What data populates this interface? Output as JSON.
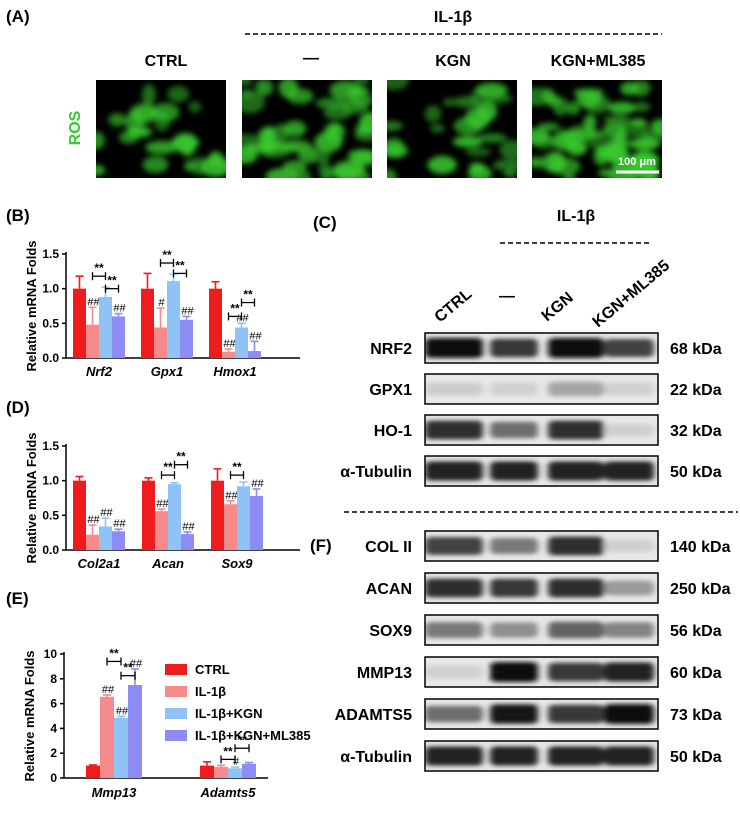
{
  "panels": {
    "A": {
      "letter": "(A)",
      "group_label": "IL-1β",
      "ylabel": "ROS",
      "columns": [
        "CTRL",
        "—",
        "KGN",
        "KGN+ML385"
      ],
      "scale_bar": "100 μm",
      "green_color": "#39c92e"
    },
    "B": {
      "letter": "(B)"
    },
    "C": {
      "letter": "(C)",
      "group_label": "IL-1β",
      "lanes": [
        "CTRL",
        "—",
        "KGN",
        "KGN+ML385"
      ],
      "blots": [
        {
          "protein": "NRF2",
          "kda": "68 kDa",
          "intensity": [
            1.0,
            0.8,
            1.0,
            0.75
          ]
        },
        {
          "protein": "GPX1",
          "kda": "22 kDa",
          "intensity": [
            0.12,
            0.1,
            0.3,
            0.1
          ]
        },
        {
          "protein": "HO-1",
          "kda": "32 kDa",
          "intensity": [
            0.85,
            0.55,
            0.85,
            0.1
          ]
        },
        {
          "protein": "α-Tubulin",
          "kda": "50 kDa",
          "intensity": [
            0.9,
            0.9,
            0.9,
            0.9
          ]
        }
      ]
    },
    "D": {
      "letter": "(D)"
    },
    "E": {
      "letter": "(E)"
    },
    "F": {
      "letter": "(F)",
      "blots": [
        {
          "protein": "COL II",
          "kda": "140 kDa",
          "intensity": [
            0.75,
            0.5,
            0.85,
            0.1
          ]
        },
        {
          "protein": "ACAN",
          "kda": "250 kDa",
          "intensity": [
            0.85,
            0.8,
            0.85,
            0.35
          ]
        },
        {
          "protein": "SOX9",
          "kda": "56 kDa",
          "intensity": [
            0.5,
            0.4,
            0.6,
            0.45
          ]
        },
        {
          "protein": "MMP13",
          "kda": "60 kDa",
          "intensity": [
            0.1,
            1.0,
            0.8,
            0.9
          ]
        },
        {
          "protein": "ADAMTS5",
          "kda": "73 kDa",
          "intensity": [
            0.55,
            0.95,
            0.8,
            1.0
          ]
        },
        {
          "protein": "α-Tubulin",
          "kda": "50 kDa",
          "intensity": [
            0.9,
            0.9,
            0.9,
            0.9
          ]
        }
      ]
    }
  },
  "colors": {
    "CTRL": "#ee1c1c",
    "IL-1β": "#f48a8a",
    "IL-1β+KGN": "#8fc3f5",
    "IL-1β+KGN+ML385": "#8c8cf4"
  },
  "chart_data": [
    {
      "id": "B",
      "type": "bar",
      "ylabel": "Relative mRNA Folds",
      "ylim": [
        0,
        1.5
      ],
      "yticks": [
        "0.0",
        "0.5",
        "1.0",
        "1.5"
      ],
      "categories": [
        "Nrf2",
        "Gpx1",
        "Hmox1"
      ],
      "series": [
        {
          "name": "CTRL",
          "values": [
            1.0,
            1.0,
            1.0
          ],
          "errors": [
            0.18,
            0.22,
            0.1
          ]
        },
        {
          "name": "IL-1β",
          "values": [
            0.48,
            0.44,
            0.09
          ],
          "errors": [
            0.25,
            0.28,
            0.04
          ]
        },
        {
          "name": "IL-1β+KGN",
          "values": [
            0.88,
            1.11,
            0.44
          ],
          "errors": [
            0.14,
            0.1,
            0.06
          ]
        },
        {
          "name": "IL-1β+KGN+ML385",
          "values": [
            0.6,
            0.55,
            0.1
          ],
          "errors": [
            0.04,
            0.05,
            0.14
          ]
        }
      ],
      "marks": [
        [
          "",
          "##",
          "",
          "##"
        ],
        [
          "",
          "#",
          "",
          "##"
        ],
        [
          "",
          "##",
          "##",
          "##"
        ]
      ],
      "brackets": [
        {
          "cat": 0,
          "from": 1,
          "to": 2,
          "y": 1.18,
          "label": "**"
        },
        {
          "cat": 0,
          "from": 2,
          "to": 3,
          "y": 1.0,
          "label": "**"
        },
        {
          "cat": 1,
          "from": 1,
          "to": 2,
          "y": 1.37,
          "label": "**"
        },
        {
          "cat": 1,
          "from": 2,
          "to": 3,
          "y": 1.22,
          "label": "**"
        },
        {
          "cat": 2,
          "from": 1,
          "to": 2,
          "y": 0.6,
          "label": "**"
        },
        {
          "cat": 2,
          "from": 2,
          "to": 3,
          "y": 0.8,
          "label": "**"
        }
      ]
    },
    {
      "id": "D",
      "type": "bar",
      "ylabel": "Relative mRNA Folds",
      "ylim": [
        0,
        1.5
      ],
      "yticks": [
        "0.0",
        "0.5",
        "1.0",
        "1.5"
      ],
      "categories": [
        "Col2a1",
        "Acan",
        "Sox9"
      ],
      "series": [
        {
          "name": "CTRL",
          "values": [
            1.0,
            1.0,
            1.0
          ],
          "errors": [
            0.06,
            0.04,
            0.17
          ]
        },
        {
          "name": "IL-1β",
          "values": [
            0.22,
            0.56,
            0.66
          ],
          "errors": [
            0.14,
            0.03,
            0.05
          ]
        },
        {
          "name": "IL-1β+KGN",
          "values": [
            0.34,
            0.95,
            0.92
          ],
          "errors": [
            0.12,
            0.02,
            0.06
          ]
        },
        {
          "name": "IL-1β+KGN+ML385",
          "values": [
            0.27,
            0.23,
            0.78
          ],
          "errors": [
            0.03,
            0.03,
            0.1
          ]
        }
      ],
      "marks": [
        [
          "",
          "##",
          "##",
          "##"
        ],
        [
          "",
          "##",
          "",
          "##"
        ],
        [
          "",
          "##",
          "",
          "##"
        ]
      ],
      "brackets": [
        {
          "cat": 1,
          "from": 1,
          "to": 2,
          "y": 1.08,
          "label": "**"
        },
        {
          "cat": 1,
          "from": 2,
          "to": 3,
          "y": 1.23,
          "label": "**"
        },
        {
          "cat": 2,
          "from": 1,
          "to": 2,
          "y": 1.08,
          "label": "**"
        }
      ]
    },
    {
      "id": "E",
      "type": "bar",
      "ylabel": "Relative mRNA Folds",
      "ylim": [
        0,
        10
      ],
      "yticks": [
        "0",
        "2",
        "4",
        "6",
        "8",
        "10"
      ],
      "categories": [
        "Mmp13",
        "Adamts5"
      ],
      "series": [
        {
          "name": "CTRL",
          "values": [
            1.0,
            1.0
          ],
          "errors": [
            0.05,
            0.3
          ]
        },
        {
          "name": "IL-1β",
          "values": [
            6.55,
            0.9
          ],
          "errors": [
            0.15,
            0.12
          ]
        },
        {
          "name": "IL-1β+KGN",
          "values": [
            4.85,
            0.78
          ],
          "errors": [
            0.12,
            0.1
          ]
        },
        {
          "name": "IL-1β+KGN+ML385",
          "values": [
            7.5,
            1.15
          ],
          "errors": [
            1.3,
            0.1
          ]
        }
      ],
      "marks": [
        [
          "",
          "##",
          "##",
          "##"
        ],
        [
          "",
          "",
          "#",
          ""
        ]
      ],
      "brackets": [
        {
          "cat": 0,
          "from": 1,
          "to": 2,
          "y": 9.4,
          "label": "**"
        },
        {
          "cat": 0,
          "from": 2,
          "to": 3,
          "y": 8.25,
          "label": "**"
        },
        {
          "cat": 1,
          "from": 1,
          "to": 2,
          "y": 1.5,
          "label": "**"
        },
        {
          "cat": 1,
          "from": 2,
          "to": 3,
          "y": 2.4,
          "label": "**"
        }
      ],
      "legend": [
        "CTRL",
        "IL-1β",
        "IL-1β+KGN",
        "IL-1β+KGN+ML385"
      ]
    }
  ]
}
